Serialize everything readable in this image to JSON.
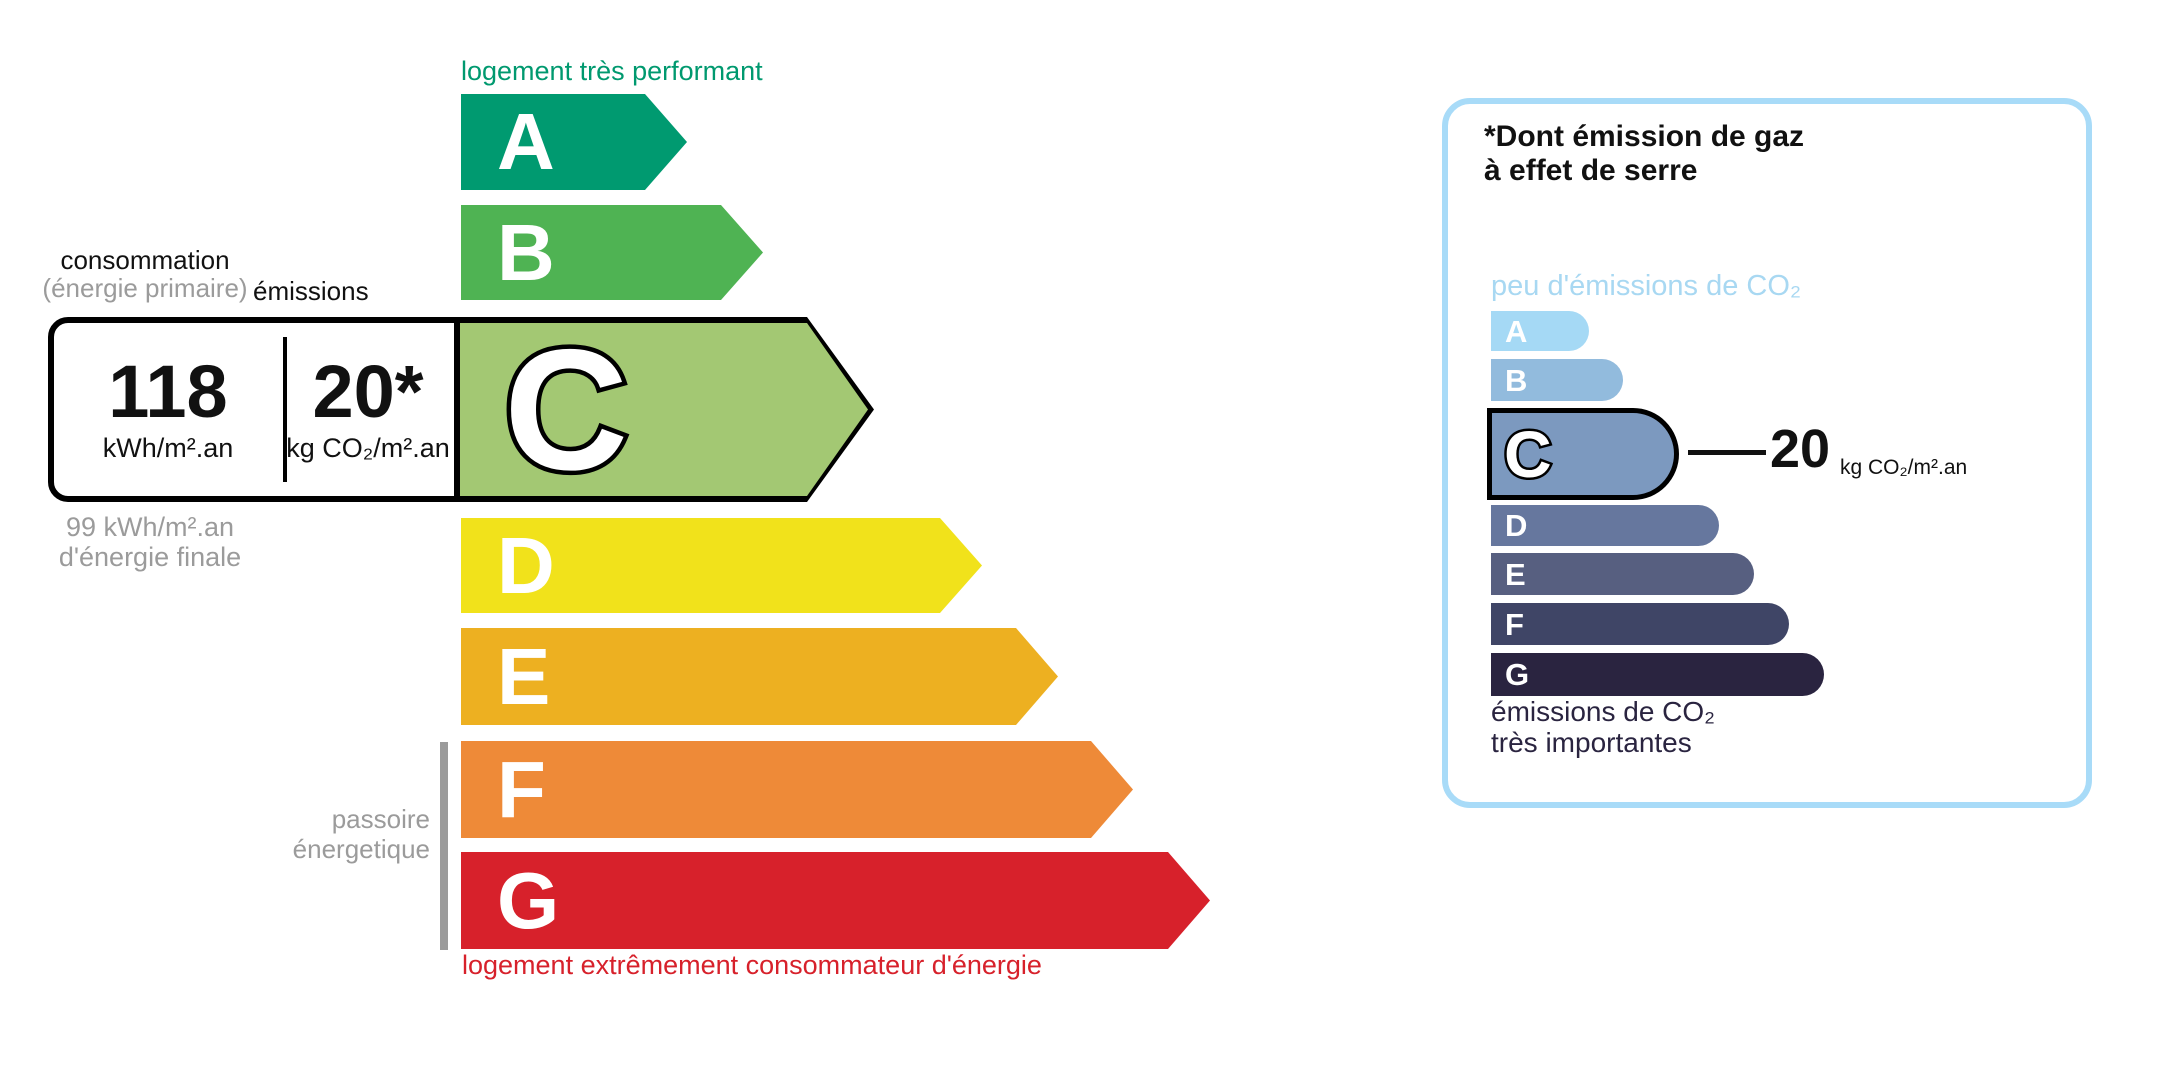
{
  "main_scale": {
    "top_label": "logement très performant",
    "bottom_label": "logement extrêmement consommateur d'énergie",
    "bars": [
      {
        "label": "A",
        "color": "#009A70"
      },
      {
        "label": "B",
        "color": "#4FB353"
      },
      {
        "label": "C",
        "color": "#A3C873",
        "highlighted": true
      },
      {
        "label": "D",
        "color": "#F1E21B"
      },
      {
        "label": "E",
        "color": "#EDB021"
      },
      {
        "label": "F",
        "color": "#EE8A38"
      },
      {
        "label": "G",
        "color": "#D7212B"
      }
    ],
    "passoire": {
      "line1": "passoire",
      "line2": "énergetique",
      "color": "#9B9B9B"
    }
  },
  "consumption_box": {
    "header_primary": "consommation",
    "header_primary_sub": "(énergie primaire)",
    "header_emissions": "émissions",
    "energy_value": "118",
    "energy_unit": "kWh/m².an",
    "co2_value": "20*",
    "co2_unit": "kg CO₂/m².an",
    "final_energy_line1": "99 kWh/m².an",
    "final_energy_line2": "d'énergie finale"
  },
  "co2_panel": {
    "title_line1": "*Dont émission de gaz",
    "title_line2": "à effet de serre",
    "top_label": "peu d'émissions de CO₂",
    "bottom_label_line1": "émissions de CO₂",
    "bottom_label_line2": "très importantes",
    "highlight": {
      "value": "20",
      "unit": "kg CO₂/m².an"
    },
    "bars": [
      {
        "label": "A",
        "color": "#A5D9F5"
      },
      {
        "label": "B",
        "color": "#92BBDD"
      },
      {
        "label": "C",
        "color": "#7C99BF",
        "highlighted": true
      },
      {
        "label": "D",
        "color": "#66779E"
      },
      {
        "label": "E",
        "color": "#575F80"
      },
      {
        "label": "F",
        "color": "#3F4566"
      },
      {
        "label": "G",
        "color": "#2A2440"
      }
    ]
  },
  "colors": {
    "top_label_green": "#00996F",
    "bottom_label_red": "#D7212B",
    "gray_text": "#9B9B9B",
    "panel_border_blue": "#A8DBF8",
    "panel_top_label_blue": "#A8D8F2",
    "panel_bottom_label_navy": "#2A2440",
    "outline_black": "#000000"
  }
}
